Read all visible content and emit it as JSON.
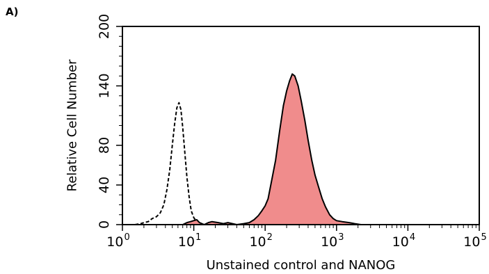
{
  "panel_label": "A)",
  "chart_data": {
    "type": "histogram",
    "title": "",
    "xlabel": "Unstained control and NANOG",
    "ylabel": "Relative Cell Number",
    "xscale": "log",
    "xlim": [
      1,
      100000
    ],
    "ylim": [
      0,
      200
    ],
    "x_ticks": [
      {
        "base": "10",
        "exp": "0",
        "value": 1
      },
      {
        "base": "10",
        "exp": "1",
        "value": 10
      },
      {
        "base": "10",
        "exp": "2",
        "value": 100
      },
      {
        "base": "10",
        "exp": "3",
        "value": 1000
      },
      {
        "base": "10",
        "exp": "4",
        "value": 10000
      },
      {
        "base": "10",
        "exp": "5",
        "value": 100000
      }
    ],
    "y_ticks": [
      "0",
      "40",
      "80",
      "140",
      "200"
    ],
    "y_tick_values": [
      0,
      40,
      80,
      140,
      200
    ],
    "series": [
      {
        "style": "dashed outline, no fill",
        "color": "#000000",
        "points": [
          [
            1.5,
            0
          ],
          [
            1.8,
            1
          ],
          [
            2.0,
            2
          ],
          [
            2.3,
            3
          ],
          [
            2.6,
            6
          ],
          [
            3.0,
            8
          ],
          [
            3.4,
            12
          ],
          [
            3.8,
            20
          ],
          [
            4.2,
            35
          ],
          [
            4.6,
            55
          ],
          [
            5.0,
            80
          ],
          [
            5.4,
            102
          ],
          [
            5.8,
            118
          ],
          [
            6.2,
            123
          ],
          [
            6.6,
            116
          ],
          [
            7.0,
            98
          ],
          [
            7.5,
            72
          ],
          [
            8.0,
            48
          ],
          [
            8.6,
            28
          ],
          [
            9.2,
            14
          ],
          [
            10,
            7
          ],
          [
            11,
            3
          ],
          [
            12,
            1
          ],
          [
            14,
            0
          ]
        ]
      },
      {
        "style": "solid outline, filled",
        "color": "#000000",
        "fill": "#f08c8c",
        "points": [
          [
            7,
            0
          ],
          [
            8,
            2
          ],
          [
            9,
            3
          ],
          [
            11,
            5
          ],
          [
            12,
            2
          ],
          [
            14,
            0
          ],
          [
            16,
            2
          ],
          [
            18,
            3
          ],
          [
            22,
            2
          ],
          [
            26,
            1
          ],
          [
            30,
            2
          ],
          [
            40,
            0
          ],
          [
            50,
            1
          ],
          [
            60,
            2
          ],
          [
            70,
            5
          ],
          [
            80,
            9
          ],
          [
            90,
            14
          ],
          [
            100,
            19
          ],
          [
            110,
            26
          ],
          [
            120,
            40
          ],
          [
            140,
            65
          ],
          [
            160,
            95
          ],
          [
            180,
            120
          ],
          [
            200,
            135
          ],
          [
            220,
            145
          ],
          [
            240,
            152
          ],
          [
            260,
            150
          ],
          [
            290,
            140
          ],
          [
            320,
            125
          ],
          [
            360,
            105
          ],
          [
            400,
            85
          ],
          [
            450,
            65
          ],
          [
            500,
            50
          ],
          [
            560,
            38
          ],
          [
            630,
            26
          ],
          [
            700,
            18
          ],
          [
            800,
            10
          ],
          [
            900,
            6
          ],
          [
            1000,
            4
          ],
          [
            1200,
            3
          ],
          [
            1500,
            2
          ],
          [
            1800,
            1
          ],
          [
            2200,
            0
          ]
        ]
      }
    ]
  }
}
